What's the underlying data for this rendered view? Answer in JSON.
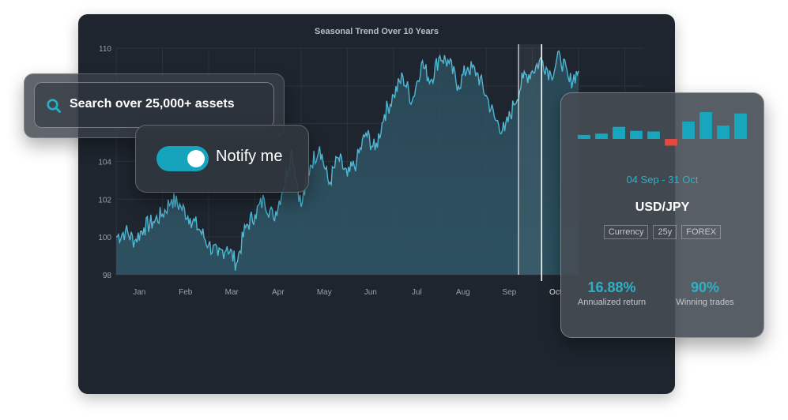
{
  "search": {
    "placeholder": "Search over 25,000+ assets",
    "icon": "search-icon"
  },
  "notify": {
    "label": "Notify me",
    "enabled": true
  },
  "chart_data": {
    "type": "area",
    "title": "Seasonal Trend Over 10 Years",
    "xlabel": "",
    "ylabel": "",
    "ylim": [
      98,
      110
    ],
    "yticks": [
      98,
      100,
      102,
      104,
      110
    ],
    "categories": [
      "Jan",
      "Feb",
      "Mar",
      "Apr",
      "May",
      "Jun",
      "Jul",
      "Aug",
      "Sep",
      "Oct"
    ],
    "highlight_category": "Oct",
    "grid": true,
    "series": [
      {
        "x": [
          0.0,
          0.2,
          0.4,
          0.6,
          0.8,
          1.0,
          1.2,
          1.4,
          1.6,
          1.8,
          2.0,
          2.2,
          2.4,
          2.6,
          2.8,
          3.0,
          3.2,
          3.4,
          3.6,
          3.8,
          4.0,
          4.2,
          4.4,
          4.6,
          4.8,
          5.0,
          5.2,
          5.4,
          5.6,
          5.8,
          6.0,
          6.2,
          6.4,
          6.6,
          6.8,
          7.0,
          7.2,
          7.4,
          7.6,
          7.8,
          8.0,
          8.2,
          8.4,
          8.6,
          8.8,
          9.0,
          9.2,
          9.4,
          9.6,
          9.8,
          10.0
        ],
        "values": [
          100.0,
          100.3,
          99.8,
          100.5,
          100.8,
          101.2,
          102.0,
          101.6,
          101.0,
          100.4,
          99.6,
          99.0,
          99.5,
          98.6,
          100.5,
          101.2,
          102.0,
          101.0,
          102.5,
          104.6,
          101.6,
          103.8,
          104.8,
          102.8,
          104.2,
          103.2,
          104.0,
          105.5,
          104.6,
          106.5,
          107.5,
          108.5,
          107.2,
          109.2,
          108.3,
          109.6,
          109.2,
          108.0,
          109.0,
          108.7,
          107.5,
          106.2,
          105.6,
          107.0,
          108.4,
          108.8,
          109.4,
          108.6,
          109.6,
          108.2,
          108.8
        ],
        "line_color": "#4fb7d2",
        "fill_color": "#2e5363"
      }
    ]
  },
  "stats": {
    "mini_bars": [
      {
        "value": 0.15,
        "color": "#18a6bf"
      },
      {
        "value": 0.2,
        "color": "#18a6bf"
      },
      {
        "value": 0.45,
        "color": "#18a6bf"
      },
      {
        "value": 0.3,
        "color": "#18a6bf"
      },
      {
        "value": 0.28,
        "color": "#18a6bf"
      },
      {
        "value": -0.25,
        "color": "#e04a40"
      },
      {
        "value": 0.65,
        "color": "#18a6bf"
      },
      {
        "value": 1.0,
        "color": "#18a6bf"
      },
      {
        "value": 0.5,
        "color": "#18a6bf"
      },
      {
        "value": 0.95,
        "color": "#18a6bf"
      }
    ],
    "date_range": "04 Sep - 31 Oct",
    "pair": "USD/JPY",
    "tags": [
      "Currency",
      "25y",
      "FOREX"
    ],
    "annualized_return": {
      "value": "16.88%",
      "label": "Annualized return"
    },
    "winning_trades": {
      "value": "90%",
      "label": "Winning trades"
    },
    "accent_color": "#2fb0c6"
  }
}
